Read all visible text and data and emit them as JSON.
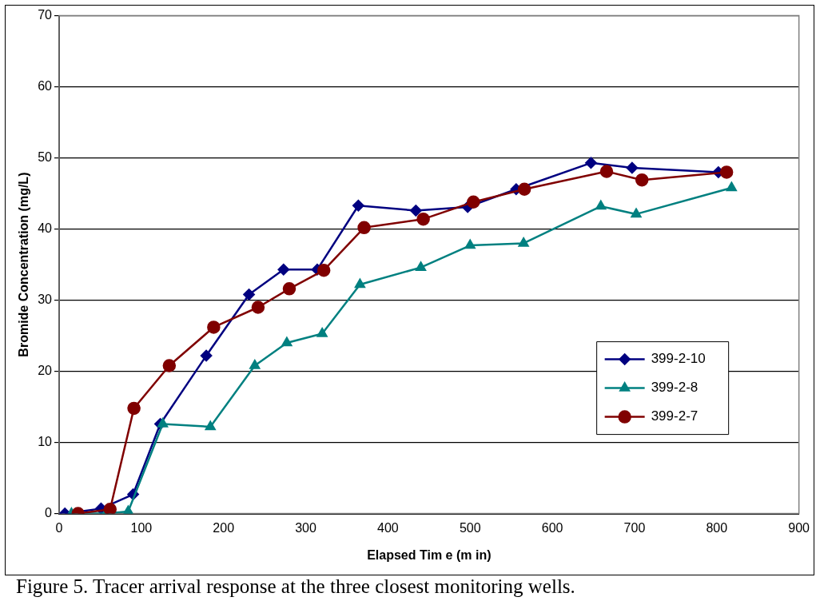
{
  "chart_data": {
    "type": "line",
    "xlabel": "Elapsed Tim e (m in)",
    "ylabel": "Bromide Concentration (mg/L)",
    "xlim": [
      0,
      900
    ],
    "xticks": [
      0,
      100,
      200,
      300,
      400,
      500,
      600,
      700,
      800,
      900
    ],
    "ylim": [
      0,
      70
    ],
    "yticks": [
      0,
      10,
      20,
      30,
      40,
      50,
      60,
      70
    ],
    "grid": "y",
    "legend": "right",
    "annotations": [
      "Figure 5.  Tracer arrival response at the three closest monitoring wells."
    ],
    "series": [
      {
        "name": "399-2-10",
        "color": "#000080",
        "marker": "diamond",
        "x": [
          7,
          51,
          90,
          123,
          179,
          231,
          273,
          314,
          364,
          434,
          497,
          556,
          647,
          697,
          802
        ],
        "values": [
          0,
          0.7,
          2.7,
          12.6,
          22.2,
          30.8,
          34.3,
          34.3,
          43.3,
          42.6,
          43.1,
          45.6,
          49.3,
          48.6,
          48.0
        ]
      },
      {
        "name": "399-2-8",
        "color": "#008080",
        "marker": "triangle",
        "x": [
          15,
          57,
          84,
          126,
          184,
          238,
          277,
          320,
          366,
          440,
          500,
          565,
          659,
          702,
          818
        ],
        "values": [
          0,
          0,
          0.3,
          12.6,
          12.2,
          20.8,
          24,
          25.3,
          32.2,
          34.6,
          37.7,
          38,
          43.2,
          42.1,
          45.8
        ]
      },
      {
        "name": "399-2-7",
        "color": "#800000",
        "marker": "circle",
        "x": [
          23,
          62,
          91,
          134,
          188,
          242,
          280,
          322,
          371,
          443,
          504,
          566,
          666,
          709,
          812
        ],
        "values": [
          0,
          0.6,
          14.8,
          20.8,
          26.2,
          29,
          31.6,
          34.2,
          40.2,
          41.4,
          43.8,
          45.6,
          48.1,
          46.9,
          48.0
        ]
      }
    ]
  }
}
